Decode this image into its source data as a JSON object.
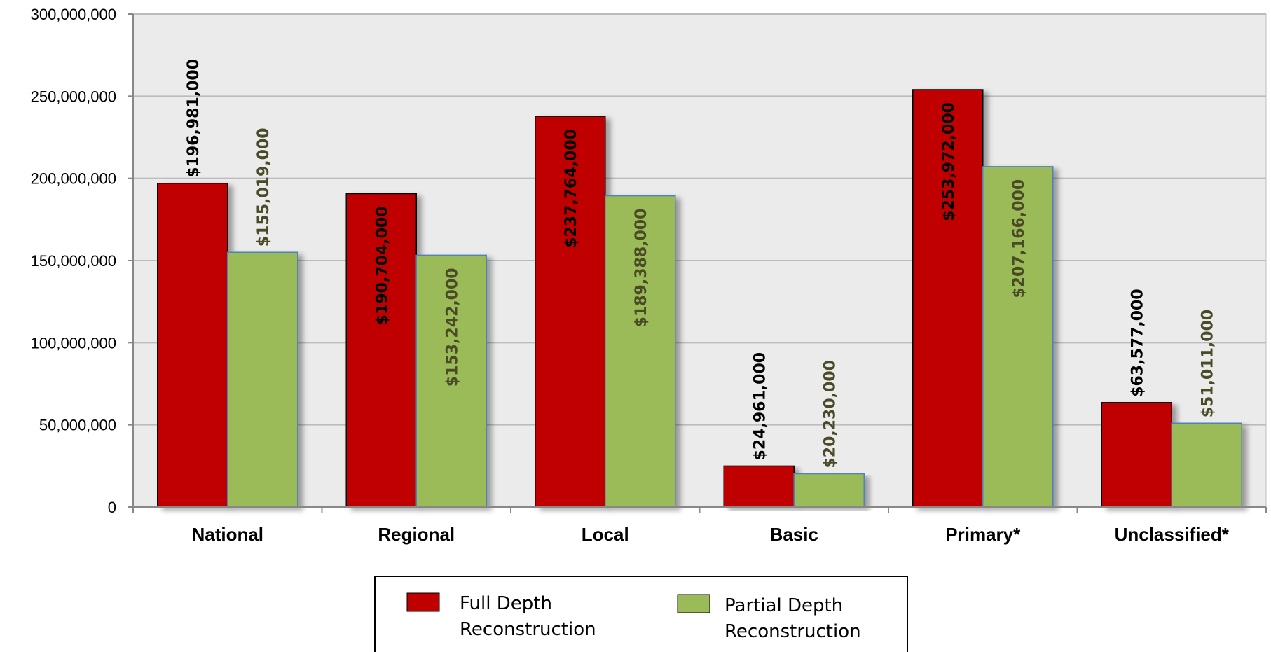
{
  "chart_data": {
    "type": "bar",
    "categories": [
      "National",
      "Regional",
      "Local",
      "Basic",
      "Primary*",
      "Unclassified*"
    ],
    "series": [
      {
        "name": "Full Depth Reconstruction",
        "color": "#c00000",
        "values": [
          196981000,
          190704000,
          237764000,
          24961000,
          253972000,
          63577000
        ],
        "labels": [
          "$196,981,000",
          "$190,704,000",
          "$237,764,000",
          "$24,961,000",
          "$253,972,000",
          "$63,577,000"
        ],
        "label_inside": [
          false,
          true,
          true,
          false,
          true,
          false
        ]
      },
      {
        "name": "Partial Depth Reconstruction",
        "color": "#9bbb59",
        "values": [
          155019000,
          153242000,
          189388000,
          20230000,
          207166000,
          51011000
        ],
        "labels": [
          "$155,019,000",
          "$153,242,000",
          "$189,388,000",
          "$20,230,000",
          "$207,166,000",
          "$51,011,000"
        ],
        "label_inside": [
          false,
          true,
          true,
          false,
          true,
          false
        ]
      }
    ],
    "yticks": [
      0,
      50000000,
      100000000,
      150000000,
      200000000,
      250000000,
      300000000
    ],
    "ytick_labels": [
      "0",
      "50,000,000",
      "100,000,000",
      "150,000,000",
      "200,000,000",
      "250,000,000",
      "300,000,000"
    ],
    "ylim": [
      0,
      300000000
    ],
    "grid": true,
    "legend_position": "bottom",
    "title": "",
    "xlabel": "",
    "ylabel": ""
  },
  "legend": {
    "full_line1": "Full Depth",
    "full_line2": "Reconstruction",
    "partial_line1": "Partial Depth",
    "partial_line2": "Reconstruction"
  }
}
